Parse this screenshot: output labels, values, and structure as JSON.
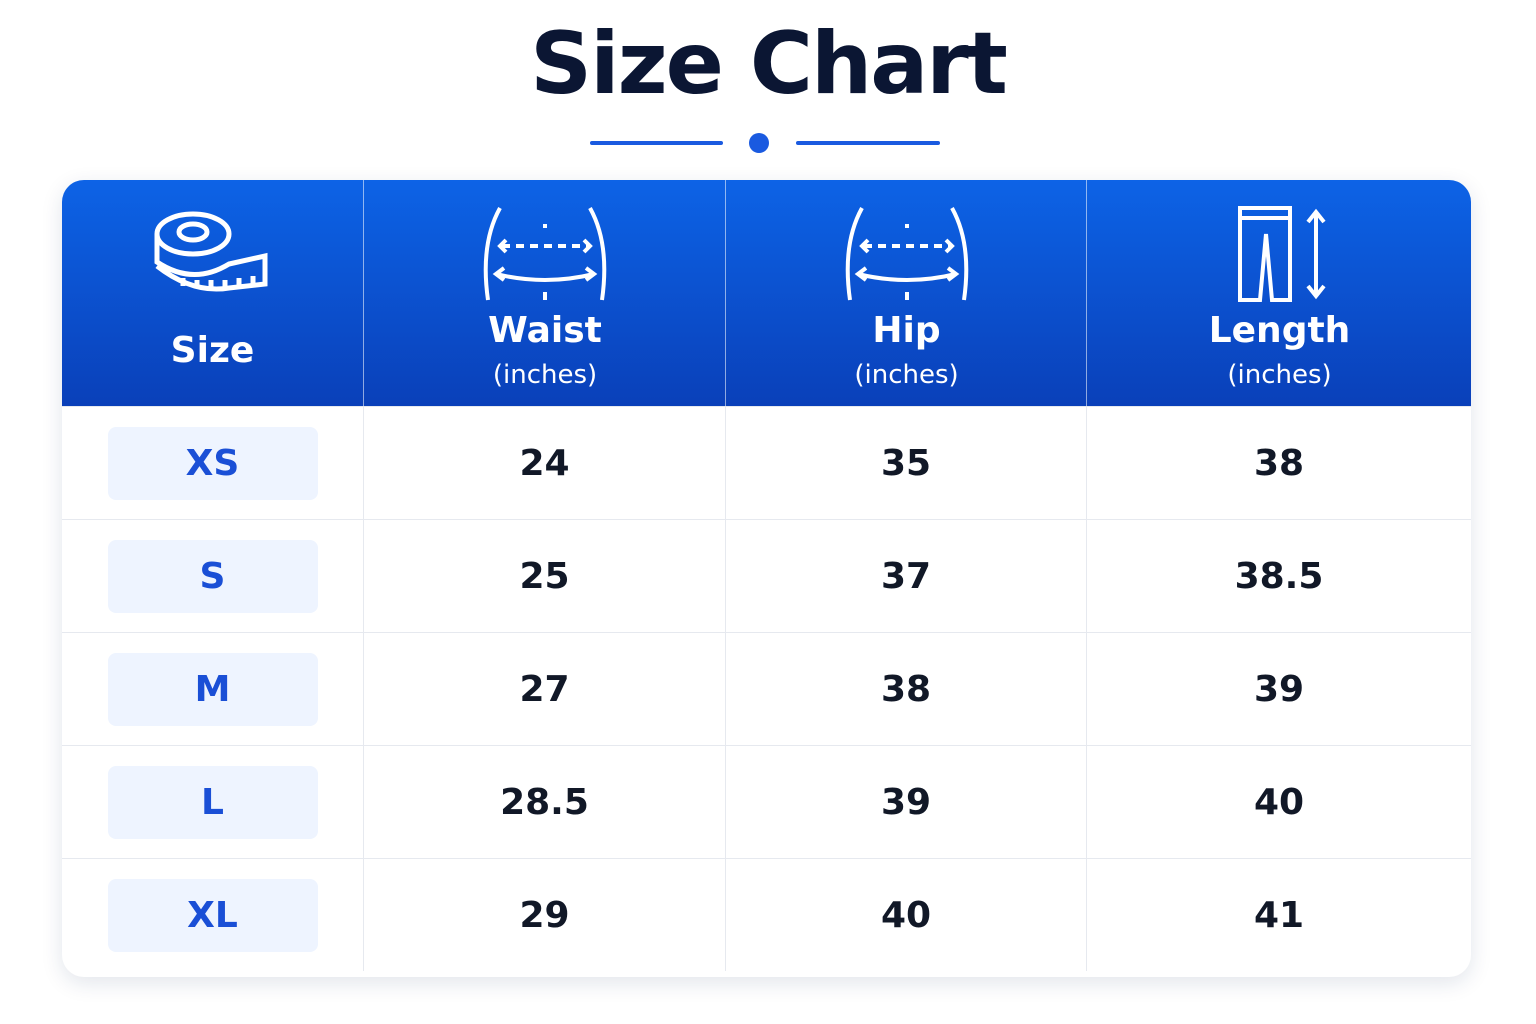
{
  "title": "Size Chart",
  "table": {
    "header": [
      {
        "label": "Size"
      },
      {
        "label": "Waist",
        "unit": "(inches)"
      },
      {
        "label": "Hip",
        "unit": "(inches)"
      },
      {
        "label": "Length",
        "unit": "(inches)"
      }
    ],
    "rows": [
      [
        "XS",
        24,
        35,
        38
      ],
      [
        "S",
        25,
        37,
        38.5
      ],
      [
        "M",
        27,
        38,
        39
      ],
      [
        "L",
        28.5,
        39,
        40
      ],
      [
        "XL",
        29,
        40,
        41
      ]
    ]
  }
}
